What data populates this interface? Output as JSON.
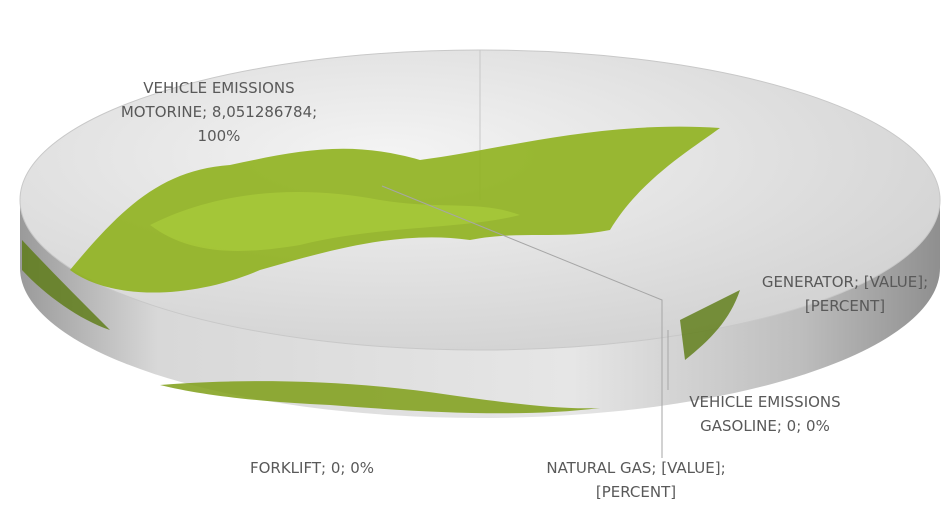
{
  "chart_data": {
    "type": "pie",
    "categories": [
      "VEHICLE EMISSIONS MOTORINE",
      "GENERATOR",
      "VEHICLE EMISSIONS GASOLINE",
      "NATURAL GAS",
      "FORKLIFT"
    ],
    "values": [
      8.051286784,
      null,
      0,
      null,
      0
    ],
    "value_labels": [
      "8,051286784",
      "[VALUE]",
      "0",
      "[VALUE]",
      "0"
    ],
    "percent_labels": [
      "100%",
      "[PERCENT]",
      "0%",
      "[PERCENT]",
      "0%"
    ],
    "label_separator": "; ",
    "color": "#dcdcdc"
  }
}
